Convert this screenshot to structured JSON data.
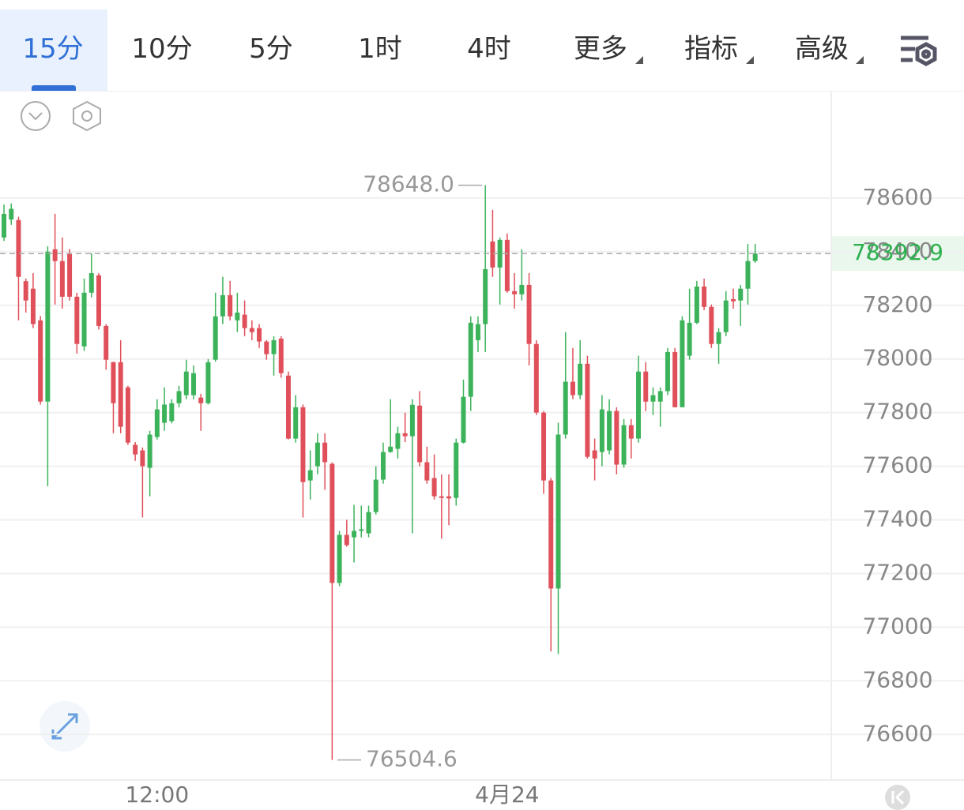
{
  "toolbar": {
    "tabs": [
      "15分",
      "10分",
      "5分",
      "1时",
      "4时",
      "更多",
      "指标",
      "高级"
    ],
    "active": 0
  },
  "chart_data": {
    "type": "candlestick",
    "categories": [
      null,
      null,
      null,
      null,
      null,
      null,
      null,
      null,
      null,
      null,
      null,
      null,
      null,
      null,
      null,
      null,
      null,
      null,
      null,
      null,
      null,
      "12:00",
      null,
      null,
      null,
      null,
      null,
      null,
      null,
      null,
      null,
      null,
      null,
      null,
      null,
      null,
      null,
      null,
      null,
      null,
      null,
      null,
      null,
      null,
      null,
      null,
      null,
      null,
      null,
      null,
      null,
      null,
      null,
      null,
      null,
      null,
      null,
      null,
      null,
      null,
      null,
      null,
      null,
      null,
      null,
      null,
      null,
      null,
      null,
      "4月24",
      null,
      null,
      null,
      null,
      null,
      null,
      null,
      null,
      null,
      null,
      null,
      null,
      null,
      null,
      null,
      null,
      null,
      null,
      null,
      null,
      null,
      null,
      null,
      null,
      null,
      null,
      null,
      null,
      null,
      null,
      null,
      null,
      null,
      null
    ],
    "open": [
      78453,
      78520,
      78518,
      78290,
      78262,
      78144,
      77841,
      78409,
      78365,
      78394,
      78232,
      78047,
      78247,
      78312,
      78123,
      77988,
      77988,
      77894,
      77680,
      77659,
      77594,
      77709,
      77762,
      77768,
      77835,
      77865,
      77865,
      77856,
      77835,
      77997,
      78159,
      78238,
      78144,
      78165,
      78115,
      78115,
      78065,
      78018,
      78076,
      77938,
      77703,
      77820,
      77547,
      77600,
      77688,
      77609,
      77165,
      77344,
      77335,
      77359,
      77350,
      77429,
      77550,
      77653,
      77665,
      77723,
      77712,
      77826,
      77615,
      77556,
      77488,
      77488,
      77482,
      77688,
      77859,
      78070,
      78130,
      78438,
      78341,
      78444,
      78253,
      78241,
      78276,
      78056,
      77800,
      77547,
      77144,
      77718,
      77915,
      77865,
      77982,
      77659,
      77653,
      77659,
      77806,
      77606,
      77753,
      77703,
      77953,
      77841,
      77841,
      77880,
      78026,
      77820,
      78012,
      78135,
      78270,
      78194,
      78056,
      78100,
      78223,
      78218,
      78262,
      78365
    ],
    "high": [
      78576,
      78580,
      78530,
      78300,
      78320,
      78160,
      78420,
      78541,
      78453,
      78410,
      78247,
      78300,
      78394,
      78320,
      78130,
      77990,
      78070,
      77900,
      77690,
      77670,
      77732,
      77850,
      77894,
      77850,
      77900,
      77997,
      77976,
      77870,
      78000,
      78247,
      78306,
      78291,
      78247,
      78218,
      78144,
      78130,
      78070,
      78085,
      78085,
      77953,
      77865,
      77830,
      77659,
      77723,
      77723,
      77615,
      77359,
      77400,
      77456,
      77453,
      77453,
      77600,
      77688,
      77850,
      77747,
      77800,
      77850,
      77880,
      77673,
      77644,
      77570,
      77570,
      77703,
      77923,
      78159,
      78159,
      78648,
      78556,
      78453,
      78468,
      78320,
      78409,
      78320,
      78070,
      77806,
      77556,
      77762,
      78100,
      78041,
      78070,
      78012,
      77703,
      77865,
      77850,
      77820,
      77776,
      77776,
      78012,
      77988,
      77894,
      77894,
      78041,
      78041,
      78159,
      78262,
      78291,
      78300,
      78203,
      78115,
      78253,
      78262,
      78276,
      78429,
      78429
    ],
    "low": [
      78440,
      78500,
      78144,
      78173,
      78115,
      77830,
      77526,
      78203,
      78188,
      78218,
      78020,
      78030,
      78230,
      78110,
      77960,
      77723,
      77723,
      77680,
      77620,
      77409,
      77488,
      77700,
      77732,
      77760,
      77820,
      77850,
      77850,
      77732,
      77830,
      77990,
      78130,
      78144,
      78100,
      78085,
      78070,
      78041,
      77997,
      77938,
      77930,
      77700,
      77688,
      77409,
      77476,
      77570,
      77512,
      76504.6,
      77153,
      77300,
      77241,
      77335,
      77335,
      77420,
      77535,
      77650,
      77629,
      77690,
      77350,
      77600,
      77535,
      77476,
      77330,
      77380,
      77453,
      77685,
      77806,
      78026,
      78026,
      78306,
      78203,
      78247,
      78188,
      78218,
      77976,
      77791,
      77497,
      76909,
      76900,
      77703,
      77850,
      77850,
      77629,
      77547,
      77600,
      77644,
      77570,
      77594,
      77629,
      77688,
      77806,
      77791,
      77747,
      77865,
      77820,
      77820,
      77997,
      78130,
      78182,
      78041,
      77982,
      78085,
      78188,
      78123,
      78203,
      78359
    ],
    "close": [
      78541,
      78560,
      78306,
      78218,
      78130,
      77841,
      78400,
      78365,
      78232,
      78232,
      78056,
      78247,
      78320,
      78123,
      77997,
      77835,
      77747,
      77688,
      77644,
      77600,
      77718,
      77812,
      77830,
      77835,
      77880,
      77953,
      77947,
      77835,
      77988,
      78159,
      78238,
      78159,
      78173,
      78115,
      78100,
      78065,
      78018,
      78070,
      77947,
      77703,
      77820,
      77541,
      77585,
      77688,
      77615,
      77165,
      77344,
      77306,
      77359,
      77365,
      77429,
      77550,
      77653,
      77673,
      77723,
      77712,
      77829,
      77615,
      77547,
      77488,
      77482,
      77480,
      77688,
      77859,
      78135,
      78130,
      78335,
      78341,
      78444,
      78253,
      78241,
      78276,
      78056,
      77800,
      77547,
      77144,
      77718,
      77915,
      77865,
      77982,
      77635,
      77629,
      77812,
      77806,
      77606,
      77753,
      77703,
      77953,
      77841,
      77865,
      77880,
      78026,
      77820,
      78144,
      78135,
      78270,
      78194,
      78056,
      78100,
      78218,
      78215,
      78262,
      78365,
      78392.9
    ],
    "up_color": "#3cb35a",
    "down_color": "#e0505a",
    "ylim": [
      76430,
      79000
    ],
    "yticks": [
      76600,
      76800,
      77000,
      77200,
      77400,
      77600,
      77800,
      78000,
      78200,
      78400,
      78600
    ],
    "grid": true,
    "last_price": 78392.9,
    "max_marker": {
      "value": 78648,
      "label": "78648.0"
    },
    "min_marker": {
      "value": 76504.6,
      "label": "76504.6"
    }
  }
}
